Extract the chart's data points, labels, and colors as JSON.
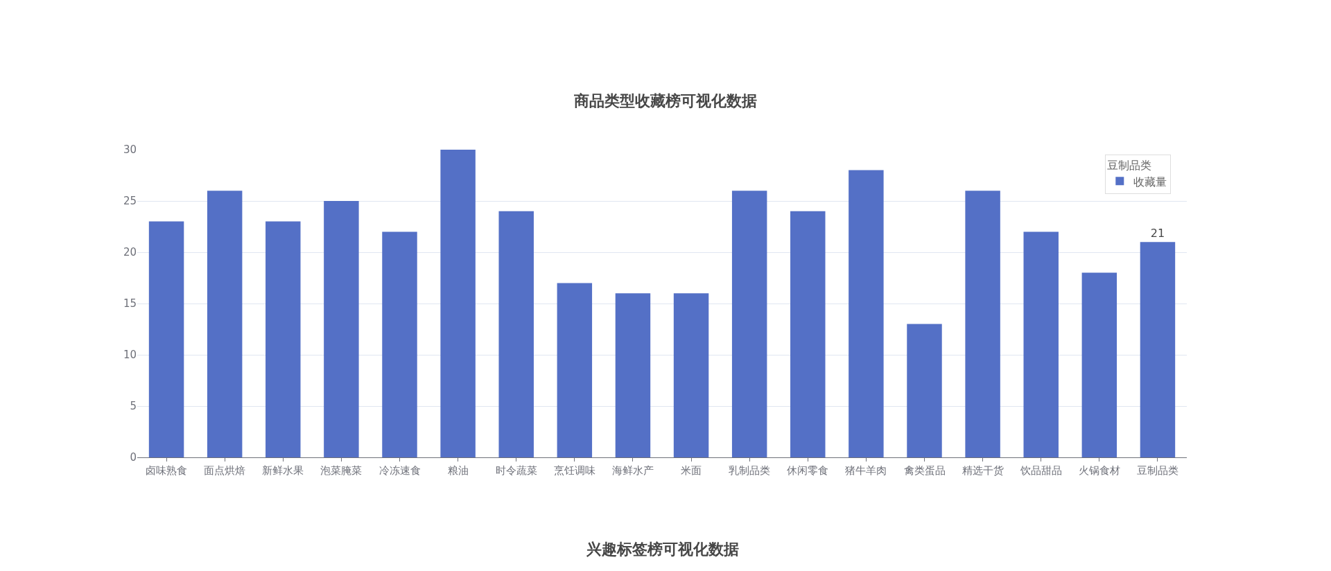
{
  "chart_data": {
    "type": "bar",
    "title": "商品类型收藏榜可视化数据",
    "categories": [
      "卤味熟食",
      "面点烘焙",
      "新鲜水果",
      "泡菜腌菜",
      "冷冻速食",
      "粮油",
      "时令蔬菜",
      "烹饪调味",
      "海鲜水产",
      "米面",
      "乳制品类",
      "休闲零食",
      "猪牛羊肉",
      "禽类蛋品",
      "精选干货",
      "饮品甜品",
      "火锅食材",
      "豆制品类"
    ],
    "series": [
      {
        "name": "收藏量",
        "color": "#5470c6",
        "values": [
          23,
          26,
          23,
          25,
          22,
          30,
          24,
          17,
          16,
          16,
          26,
          24,
          28,
          13,
          26,
          22,
          18,
          21
        ],
        "value_labels": [
          null,
          null,
          null,
          null,
          null,
          null,
          null,
          null,
          null,
          null,
          null,
          null,
          null,
          null,
          null,
          null,
          null,
          "21"
        ]
      }
    ],
    "legend": "top right",
    "legend_title": "豆制品类",
    "ylim": [
      0,
      30
    ],
    "yticks": [
      0,
      5,
      10,
      15,
      20,
      25,
      30
    ],
    "grid": "y",
    "annotations": [
      "兴趣标签榜可视化数据"
    ]
  }
}
